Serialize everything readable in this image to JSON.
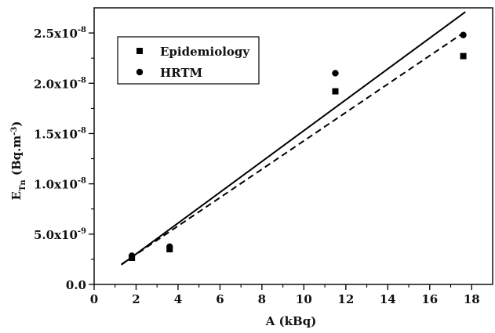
{
  "chart_data": {
    "type": "scatter",
    "xlabel": "A (kBq)",
    "ylabel": {
      "base": "E",
      "subscript": "Tn",
      "unit_open": " (Bq.m",
      "unit_exp": "-3",
      "unit_close": ")"
    },
    "xlim": [
      0,
      19
    ],
    "ylim": [
      0,
      2.75e-08
    ],
    "x_ticks": [
      0,
      2,
      4,
      6,
      8,
      10,
      12,
      14,
      16,
      18
    ],
    "x_tick_labels": [
      "0",
      "2",
      "4",
      "6",
      "8",
      "10",
      "12",
      "14",
      "16",
      "18"
    ],
    "y_ticks": [
      0,
      5e-09,
      1e-08,
      1.5e-08,
      2e-08,
      2.5e-08
    ],
    "y_tick_labels": [
      {
        "mant": "0.0",
        "exp": ""
      },
      {
        "mant": "5.0x10",
        "exp": "-9"
      },
      {
        "mant": "1.0x10",
        "exp": "-8"
      },
      {
        "mant": "1.5x10",
        "exp": "-8"
      },
      {
        "mant": "2.0x10",
        "exp": "-8"
      },
      {
        "mant": "2.5x10",
        "exp": "-8"
      }
    ],
    "legend_position": "top-left",
    "series": [
      {
        "name": "Epidemiology",
        "marker": "square",
        "color": "#000000",
        "points": [
          [
            1.8,
            2.65e-09
          ],
          [
            3.6,
            3.5e-09
          ],
          [
            11.5,
            1.92e-08
          ],
          [
            17.6,
            2.27e-08
          ]
        ]
      },
      {
        "name": "HRTM",
        "marker": "circle",
        "color": "#000000",
        "points": [
          [
            1.8,
            2.85e-09
          ],
          [
            3.6,
            3.75e-09
          ],
          [
            11.5,
            2.1e-08
          ],
          [
            17.6,
            2.48e-08
          ]
        ]
      }
    ],
    "lines": [
      {
        "style": "solid",
        "color": "#000000",
        "from": [
          1.3,
          1.95e-09
        ],
        "to": [
          17.7,
          2.71e-08
        ]
      },
      {
        "style": "dashed",
        "color": "#000000",
        "from": [
          1.3,
          2e-09
        ],
        "to": [
          17.6,
          2.5e-08
        ]
      }
    ]
  }
}
